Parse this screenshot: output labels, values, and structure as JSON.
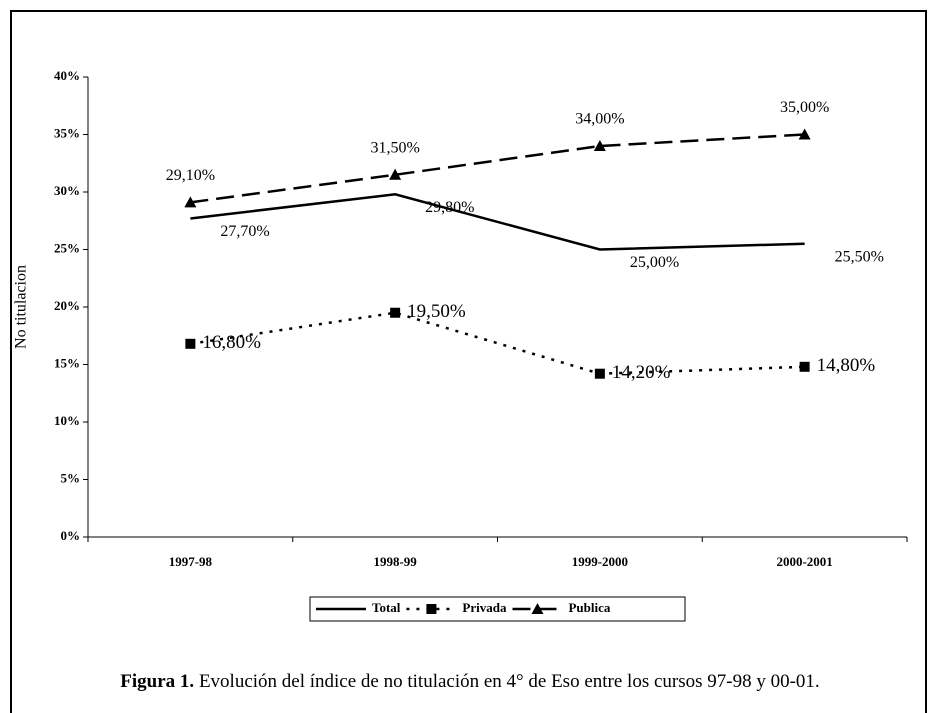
{
  "chart_data": {
    "type": "line",
    "title_label": "Figura 1.",
    "title": "Evolución del índice de no titulación en 4° de Eso entre los cursos 97-98 y 00-01.",
    "y_label": "No titulacion",
    "categories": [
      "1997-98",
      "1998-99",
      "1999-2000",
      "2000-2001"
    ],
    "series": [
      {
        "name": "Total",
        "color": "#000000",
        "line_style": "solid",
        "marker": "none",
        "values": [
          27.7,
          29.8,
          25.0,
          25.5
        ],
        "value_labels": [
          "27,70%",
          "29,80%",
          "25,00%",
          "25,50%"
        ]
      },
      {
        "name": "Privada",
        "color": "#000000",
        "line_style": "dotted",
        "marker": "square",
        "values": [
          16.8,
          19.5,
          14.2,
          14.8
        ],
        "value_labels": [
          "16,80%",
          "19,50%",
          "14,20%",
          "14,80%"
        ]
      },
      {
        "name": "Publica",
        "color": "#000000",
        "line_style": "dashed",
        "marker": "triangle",
        "values": [
          29.1,
          31.5,
          34.0,
          35.0
        ],
        "value_labels": [
          "29,10%",
          "31,50%",
          "34,00%",
          "35,00%"
        ]
      }
    ],
    "ylim": [
      0,
      40
    ],
    "yticks": [
      {
        "value": 0,
        "label": "0%"
      },
      {
        "value": 5,
        "label": "5%"
      },
      {
        "value": 10,
        "label": "10%"
      },
      {
        "value": 15,
        "label": "15%"
      },
      {
        "value": 20,
        "label": "20%"
      },
      {
        "value": 25,
        "label": "25%"
      },
      {
        "value": 30,
        "label": "30%"
      },
      {
        "value": 35,
        "label": "35%"
      },
      {
        "value": 40,
        "label": "40%"
      }
    ],
    "legend": "bottom"
  }
}
